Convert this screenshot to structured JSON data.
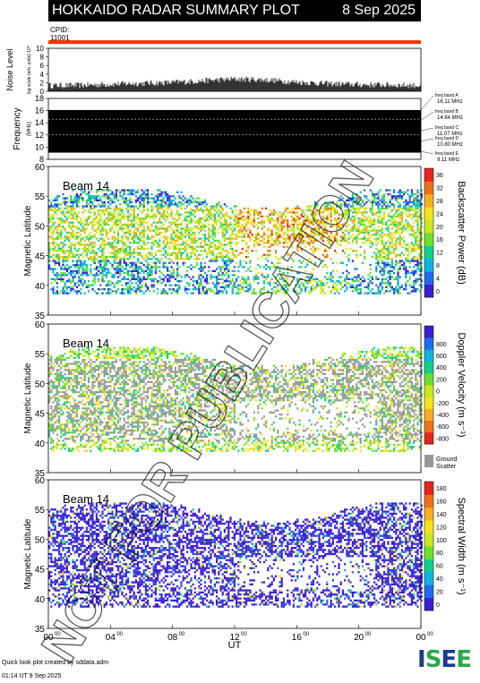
{
  "header": {
    "title": "HOKKAIDO RADAR SUMMARY PLOT",
    "date": "8 Sep 2025"
  },
  "cpid": {
    "label": "CPID:",
    "value": "11001"
  },
  "colors": {
    "header_bg": "#000000",
    "cpid_bar": "#ff3300",
    "ground_scatter": "#999999"
  },
  "footer": {
    "credit": "Quick look plot created by sddata.adm",
    "timestamp": "01:14 UT  9 Sep 2025"
  },
  "logo": {
    "text": "ISEE"
  },
  "watermark": "NOT FOR PUBLICATION",
  "chart_data": [
    {
      "type": "line",
      "ylabel": "Noise Level",
      "ylabel_small": "log scale (arb. units) 10^",
      "ylim": [
        0,
        10
      ],
      "yticks": [
        0,
        2,
        4,
        6,
        8,
        10
      ],
      "x": [
        0,
        2,
        4,
        6,
        8,
        10,
        12,
        14,
        16,
        18,
        20,
        22,
        24
      ],
      "values": [
        1.5,
        1.5,
        1.8,
        2,
        2.2,
        2.6,
        3,
        2.8,
        2.3,
        1.9,
        1.7,
        1.6,
        1.5
      ]
    },
    {
      "type": "heatmap",
      "ylabel": "Frequency",
      "ylabel_unit": "(MHz)",
      "ylim": [
        8,
        18
      ],
      "yticks": [
        8,
        10,
        12,
        14,
        16,
        18
      ],
      "band_range": [
        9.1,
        16.1
      ],
      "freq_bands": [
        {
          "name": "freq band A",
          "value": "16.11 MHz"
        },
        {
          "name": "freq band B",
          "value": "14.64 MHz"
        },
        {
          "name": "freq band C",
          "value": "11.07 MHz"
        },
        {
          "name": "freq band D",
          "value": "10.80 MHz"
        },
        {
          "name": "freq band E",
          "value": "9.11 MHz"
        }
      ]
    },
    {
      "type": "heatmap",
      "label": "Beam 14",
      "ylabel": "Magnetic Latitude",
      "ylim": [
        35,
        60
      ],
      "yticks": [
        35,
        40,
        45,
        50,
        55,
        60
      ],
      "colorbar_label": "Backscatter Power (dB)",
      "colorbar_ticks": [
        "0",
        "4",
        "8",
        "12",
        "16",
        "20",
        "24",
        "28",
        "32",
        "36"
      ],
      "colormap": [
        "#3b1fd1",
        "#1f6cf0",
        "#10b4e0",
        "#10d08c",
        "#6ee02c",
        "#c8e81c",
        "#f4e21c",
        "#f4b01c",
        "#f07018",
        "#e8241c"
      ],
      "scatter_lat_range": [
        38.5,
        56
      ],
      "ground_scatter_lat_range": [
        38.5,
        56
      ]
    },
    {
      "type": "heatmap",
      "label": "Beam 14",
      "ylabel": "Magnetic Latitude",
      "ylim": [
        35,
        60
      ],
      "yticks": [
        35,
        40,
        45,
        50,
        55,
        60
      ],
      "colorbar_label": "Doppler Velocity (m s⁻¹)",
      "colorbar_ticks": [
        "-800",
        "-600",
        "-400",
        "-200",
        "0",
        "200",
        "400",
        "600",
        "800"
      ],
      "colormap": [
        "#e8241c",
        "#f07018",
        "#f4b01c",
        "#f4e21c",
        "#c8e81c",
        "#6ee02c",
        "#10d08c",
        "#10b4e0",
        "#1f6cf0",
        "#3b1fd1"
      ],
      "ground_scatter_label": "Ground Scatter",
      "scatter_lat_range": [
        38.5,
        56
      ],
      "ground_scatter_lat_range": [
        40,
        54
      ]
    },
    {
      "type": "heatmap",
      "label": "Beam 14",
      "ylabel": "Magnetic Latitude",
      "ylim": [
        35,
        60
      ],
      "yticks": [
        35,
        40,
        45,
        50,
        55,
        60
      ],
      "colorbar_label": "Spectral Width (m s⁻¹)",
      "colorbar_ticks": [
        "0",
        "20",
        "40",
        "60",
        "80",
        "100",
        "120",
        "140",
        "160",
        "180"
      ],
      "colormap": [
        "#3b1fd1",
        "#1f6cf0",
        "#10b4e0",
        "#10d08c",
        "#6ee02c",
        "#c8e81c",
        "#f4e21c",
        "#f4b01c",
        "#f07018",
        "#e8241c"
      ],
      "scatter_lat_range": [
        38.5,
        56
      ],
      "ground_scatter_lat_range": [
        38.5,
        56
      ],
      "xlabel": "UT",
      "xlim": [
        0,
        24
      ],
      "xticks": [
        "00",
        "04",
        "08",
        "12",
        "16",
        "20",
        "00"
      ],
      "xtick_superscript": "00"
    }
  ]
}
